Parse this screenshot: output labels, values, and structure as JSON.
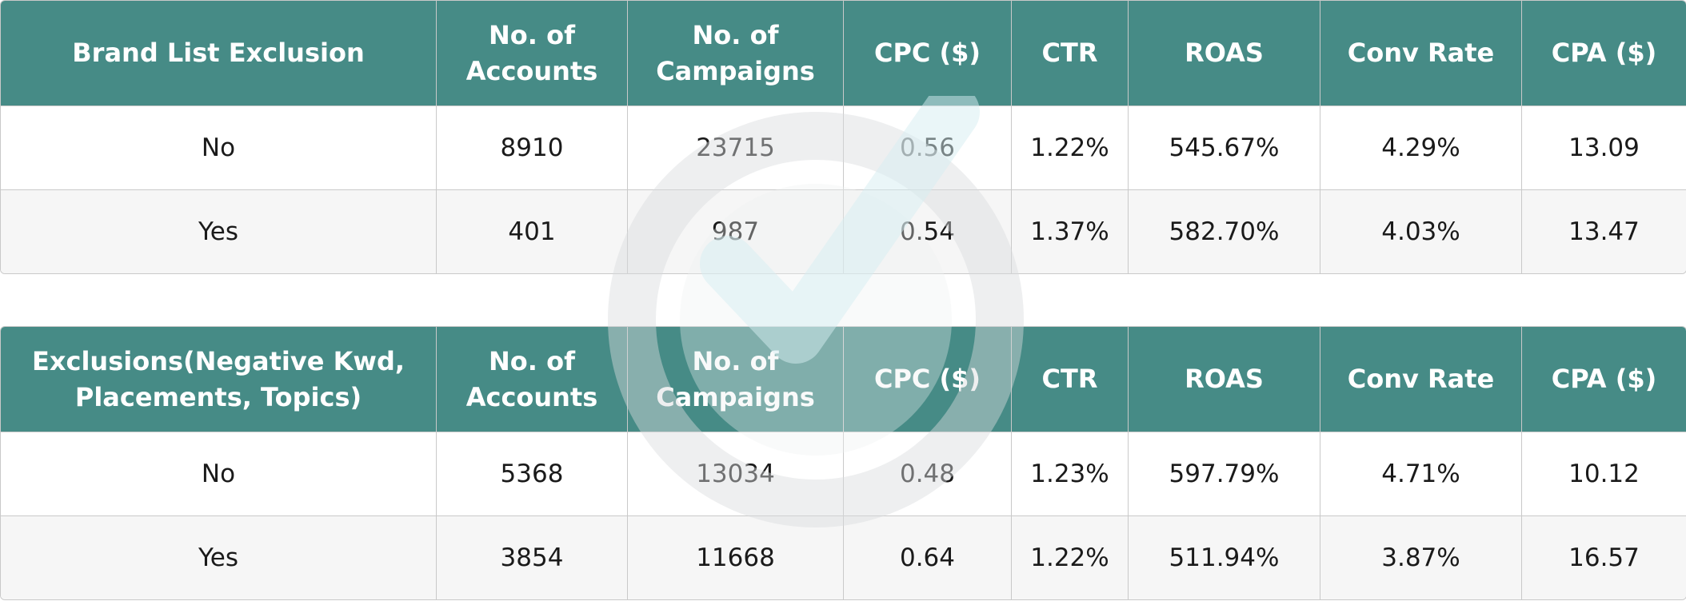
{
  "chart_data": [
    {
      "type": "table",
      "columns": [
        "Brand List Exclusion",
        "No. of Accounts",
        "No. of Campaigns",
        "CPC ($)",
        "CTR",
        "ROAS",
        "Conv Rate",
        "CPA ($)"
      ],
      "rows": [
        [
          "No",
          "8910",
          "23715",
          "0.56",
          "1.22%",
          "545.67%",
          "4.29%",
          "13.09"
        ],
        [
          "Yes",
          "401",
          "987",
          "0.54",
          "1.37%",
          "582.70%",
          "4.03%",
          "13.47"
        ]
      ]
    },
    {
      "type": "table",
      "columns": [
        "Exclusions(Negative Kwd, Placements, Topics)",
        "No. of Accounts",
        "No. of Campaigns",
        "CPC ($)",
        "CTR",
        "ROAS",
        "Conv Rate",
        "CPA ($)"
      ],
      "rows": [
        [
          "No",
          "5368",
          "13034",
          "0.48",
          "1.23%",
          "597.79%",
          "4.71%",
          "10.12"
        ],
        [
          "Yes",
          "3854",
          "11668",
          "0.64",
          "1.22%",
          "511.94%",
          "3.87%",
          "16.57"
        ]
      ]
    }
  ],
  "colors": {
    "header_bg": "#468b86",
    "header_text": "#ffffff",
    "row_alt_bg": "#f6f6f6",
    "border": "#c9c9c9",
    "watermark": "#e6e9ea"
  },
  "icons": {
    "watermark": "circular-checkmark-logo-watermark"
  }
}
